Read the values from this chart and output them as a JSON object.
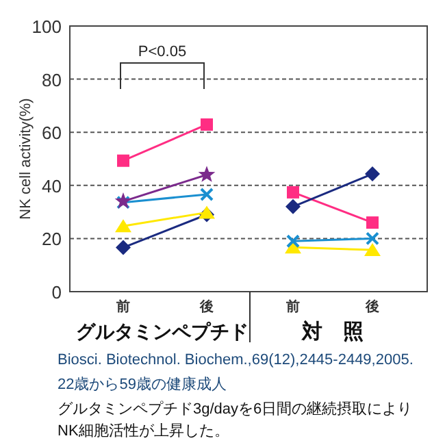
{
  "chart_data": {
    "type": "line",
    "ylabel": "NK cell activity(%)",
    "categories": [
      "前",
      "後",
      "前",
      "後"
    ],
    "ylim": [
      0,
      100
    ],
    "yticks": [
      0,
      20,
      40,
      60,
      80,
      100
    ],
    "grid": "y",
    "line_style": "solid",
    "series": [
      {
        "color": "#ff2d83",
        "marker": "square",
        "values": [
          49.3,
          62.9,
          null,
          null
        ]
      },
      {
        "color": "#7b2a8c",
        "marker": "star",
        "values": [
          34,
          44,
          null,
          null
        ]
      },
      {
        "color": "#1a8fd0",
        "marker": "cross",
        "values": [
          33.6,
          36.6,
          null,
          null
        ]
      },
      {
        "color": "#ffe800",
        "marker": "triangle",
        "values": [
          24.7,
          29.8,
          null,
          null
        ]
      },
      {
        "color": "#1a2a80",
        "marker": "diamond",
        "values": [
          16.6,
          29,
          null,
          null
        ]
      },
      {
        "color": "#1a2a80",
        "marker": "diamond",
        "values": [
          null,
          null,
          32,
          44.3
        ]
      },
      {
        "color": "#ff2d83",
        "marker": "square",
        "values": [
          null,
          null,
          37.4,
          26
        ]
      },
      {
        "color": "#1a8fd0",
        "marker": "cross",
        "values": [
          null,
          null,
          19,
          20
        ]
      },
      {
        "color": "#ffe800",
        "marker": "triangle",
        "values": [
          null,
          null,
          16.7,
          15.7
        ]
      }
    ],
    "annotations": [
      "P<0.05",
      "グルタミンペプチド",
      "対　照",
      "Biosci. Biotechnol. Biochem.,69(12),2445-2449,2005.",
      "22歳から59歳の健康成人",
      "グルタミンペプチド3g/dayを6日間の継続摂取により",
      "NK細胞活性が上昇した。"
    ]
  }
}
